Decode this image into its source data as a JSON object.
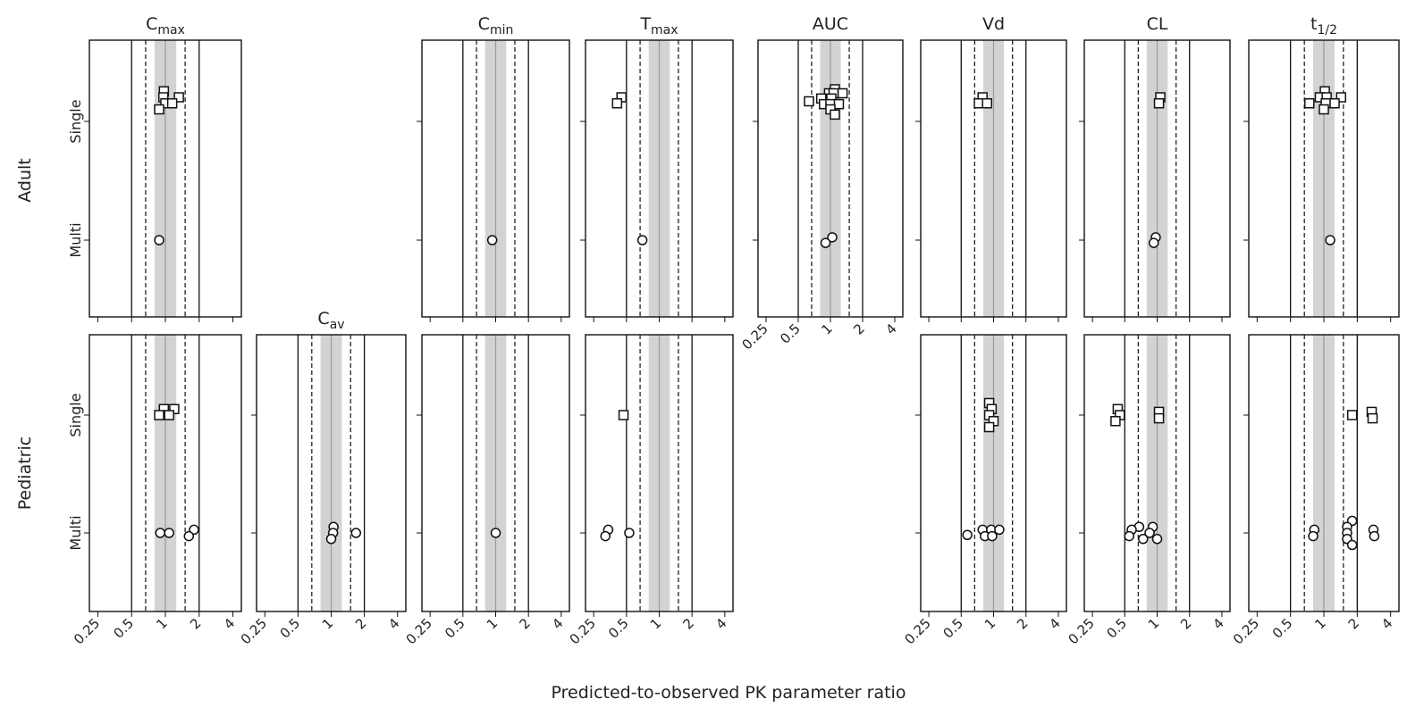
{
  "figure": {
    "xlabel": "Predicted-to-observed PK parameter ratio",
    "row_labels": [
      "Adult",
      "Pediatric"
    ],
    "dose_labels": [
      "Single",
      "Multi"
    ],
    "tick_labels": [
      "0.25",
      "0.5",
      "1",
      "2",
      "4"
    ],
    "tick_values": [
      0.25,
      0.5,
      1,
      2,
      4
    ],
    "scale": "log2",
    "reference_lines": {
      "solid": [
        0.5,
        2
      ],
      "dashed": [
        0.667,
        1.5
      ],
      "identity": 1,
      "shaded_band": [
        0.8,
        1.25
      ]
    }
  },
  "chart_data": [
    {
      "type": "scatter",
      "param": "Cmax",
      "title": "C",
      "sub": "max",
      "population": "Adult",
      "single": [
        [
          0.97,
          0.75
        ],
        [
          0.96,
          0.6
        ],
        [
          1.32,
          0.6
        ],
        [
          1.0,
          0.45
        ],
        [
          1.15,
          0.45
        ],
        [
          0.88,
          0.3
        ]
      ],
      "multi": [
        [
          0.88,
          0
        ]
      ]
    },
    {
      "type": "scatter",
      "param": "Cmin",
      "title": "C",
      "sub": "min",
      "population": "Adult",
      "single": [],
      "multi": [
        [
          0.93,
          0
        ]
      ]
    },
    {
      "type": "scatter",
      "param": "Tmax",
      "title": "T",
      "sub": "max",
      "population": "Adult",
      "single": [
        [
          0.45,
          0.6
        ],
        [
          0.41,
          0.45
        ]
      ],
      "multi": [
        [
          0.7,
          0
        ]
      ]
    },
    {
      "type": "scatter",
      "param": "AUC",
      "title": "AUC",
      "sub": "",
      "population": "Adult",
      "single": [
        [
          1.1,
          0.8
        ],
        [
          0.97,
          0.7
        ],
        [
          1.07,
          0.7
        ],
        [
          1.3,
          0.7
        ],
        [
          0.82,
          0.57
        ],
        [
          1.02,
          0.57
        ],
        [
          0.63,
          0.5
        ],
        [
          0.87,
          0.43
        ],
        [
          1.0,
          0.43
        ],
        [
          1.2,
          0.43
        ],
        [
          1.0,
          0.3
        ],
        [
          1.1,
          0.17
        ]
      ],
      "multi": [
        [
          1.04,
          0.07
        ],
        [
          0.9,
          -0.07
        ]
      ]
    },
    {
      "type": "scatter",
      "param": "Vd",
      "title": "Vd",
      "sub": "",
      "population": "Adult",
      "single": [
        [
          0.79,
          0.6
        ],
        [
          0.73,
          0.45
        ],
        [
          0.87,
          0.45
        ]
      ],
      "multi": []
    },
    {
      "type": "scatter",
      "param": "CL",
      "title": "CL",
      "sub": "",
      "population": "Adult",
      "single": [
        [
          1.07,
          0.6
        ],
        [
          1.04,
          0.45
        ]
      ],
      "multi": [
        [
          0.97,
          0.07
        ],
        [
          0.93,
          -0.07
        ]
      ]
    },
    {
      "type": "scatter",
      "param": "t1/2",
      "title": "t",
      "sub": "1/2",
      "population": "Adult",
      "single": [
        [
          1.02,
          0.75
        ],
        [
          0.92,
          0.6
        ],
        [
          1.06,
          0.6
        ],
        [
          1.43,
          0.6
        ],
        [
          0.74,
          0.45
        ],
        [
          1.04,
          0.45
        ],
        [
          1.25,
          0.45
        ],
        [
          1.0,
          0.3
        ]
      ],
      "multi": [
        [
          1.14,
          0
        ]
      ]
    },
    {
      "type": "scatter",
      "param": "Cmax",
      "title": "",
      "sub": "",
      "population": "Pediatric",
      "single": [
        [
          0.97,
          0.15
        ],
        [
          1.2,
          0.15
        ],
        [
          0.88,
          0
        ],
        [
          1.08,
          0
        ]
      ],
      "multi": [
        [
          1.8,
          0.08
        ],
        [
          0.9,
          0
        ],
        [
          1.08,
          0
        ],
        [
          1.62,
          -0.08
        ]
      ]
    },
    {
      "type": "scatter",
      "param": "Cav",
      "title": "C",
      "sub": "av",
      "population": "Pediatric",
      "single": [],
      "multi": [
        [
          1.05,
          0.15
        ],
        [
          1.04,
          0
        ],
        [
          1.68,
          0
        ],
        [
          1.0,
          -0.15
        ]
      ]
    },
    {
      "type": "scatter",
      "param": "Cmin",
      "title": "",
      "sub": "",
      "population": "Pediatric",
      "single": [],
      "multi": [
        [
          1.0,
          0
        ]
      ]
    },
    {
      "type": "scatter",
      "param": "Tmax",
      "title": "",
      "sub": "",
      "population": "Pediatric",
      "single": [
        [
          0.47,
          0
        ]
      ],
      "multi": [
        [
          0.34,
          0.08
        ],
        [
          0.53,
          0
        ],
        [
          0.32,
          -0.08
        ]
      ]
    },
    {
      "type": "scatter",
      "param": "Vd",
      "title": "",
      "sub": "",
      "population": "Pediatric",
      "single": [
        [
          0.91,
          0.3
        ],
        [
          0.96,
          0.15
        ],
        [
          0.91,
          0
        ],
        [
          1.0,
          -0.15
        ],
        [
          0.91,
          -0.3
        ]
      ],
      "multi": [
        [
          0.79,
          0.08
        ],
        [
          0.95,
          0.08
        ],
        [
          1.13,
          0.08
        ],
        [
          0.57,
          -0.05
        ],
        [
          0.83,
          -0.08
        ],
        [
          0.97,
          -0.08
        ]
      ]
    },
    {
      "type": "scatter",
      "param": "CL",
      "title": "",
      "sub": "",
      "population": "Pediatric",
      "single": [
        [
          0.43,
          0.15
        ],
        [
          1.04,
          0.08
        ],
        [
          0.45,
          0
        ],
        [
          1.04,
          -0.08
        ],
        [
          0.41,
          -0.15
        ]
      ],
      "multi": [
        [
          0.68,
          0.15
        ],
        [
          0.91,
          0.15
        ],
        [
          0.58,
          0.08
        ],
        [
          0.85,
          0
        ],
        [
          0.55,
          -0.08
        ],
        [
          0.74,
          -0.15
        ],
        [
          1.0,
          -0.15
        ]
      ]
    },
    {
      "type": "scatter",
      "param": "t1/2",
      "title": "",
      "sub": "",
      "population": "Pediatric",
      "single": [
        [
          2.7,
          0.08
        ],
        [
          1.8,
          0
        ],
        [
          2.75,
          -0.08
        ]
      ],
      "multi": [
        [
          1.8,
          0.3
        ],
        [
          1.62,
          0.15
        ],
        [
          0.82,
          0.08
        ],
        [
          2.8,
          0.08
        ],
        [
          1.62,
          0
        ],
        [
          0.8,
          -0.08
        ],
        [
          2.85,
          -0.08
        ],
        [
          1.62,
          -0.15
        ],
        [
          1.8,
          -0.3
        ]
      ]
    }
  ]
}
